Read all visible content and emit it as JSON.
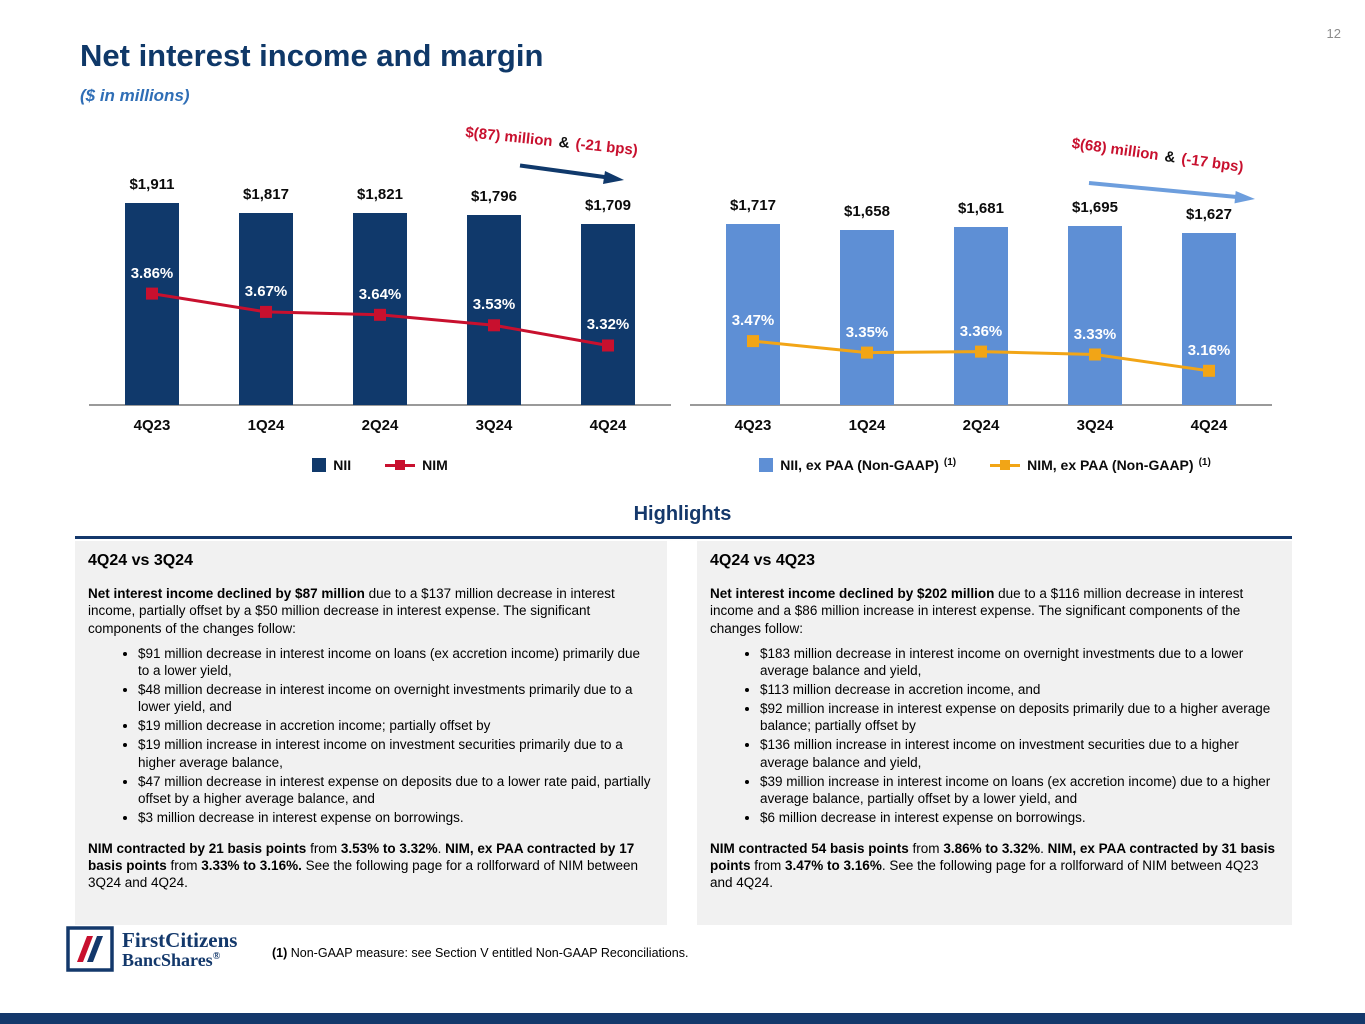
{
  "page": {
    "number": "12"
  },
  "header": {
    "title": "Net interest income and margin",
    "subtitle": "($ in millions)"
  },
  "colors": {
    "navy": "#14386B",
    "crimson": "#C8102E",
    "light_blue": "#5E8FD5",
    "amber": "#F2A516",
    "panel_gray": "#F1F1F1"
  },
  "chart_data": [
    {
      "type": "bar+line",
      "title": "",
      "categories": [
        "4Q23",
        "1Q24",
        "2Q24",
        "3Q24",
        "4Q24"
      ],
      "series": [
        {
          "name": "NII",
          "type": "bar",
          "color": "#10396B",
          "values": [
            1911,
            1817,
            1821,
            1796,
            1709
          ],
          "labels": [
            "$1,911",
            "$1,817",
            "$1,821",
            "$1,796",
            "$1,709"
          ]
        },
        {
          "name": "NIM",
          "type": "line",
          "color": "#C8102E",
          "values": [
            3.86,
            3.67,
            3.64,
            3.53,
            3.32
          ],
          "labels": [
            "3.86%",
            "3.67%",
            "3.64%",
            "3.53%",
            "3.32%"
          ]
        }
      ],
      "annotation": {
        "red1": "$(87) million",
        "amp": "&",
        "red2": "(-21 bps)",
        "arrow_color": "#10396B"
      },
      "legend": [
        {
          "label": "NII",
          "sup": "",
          "type": "bar",
          "color": "#10396B"
        },
        {
          "label": "NIM",
          "sup": "",
          "type": "line",
          "color": "#C8102E"
        }
      ],
      "grid": false,
      "legend_position": "bottom"
    },
    {
      "type": "bar+line",
      "title": "",
      "categories": [
        "4Q23",
        "1Q24",
        "2Q24",
        "3Q24",
        "4Q24"
      ],
      "series": [
        {
          "name": "NII, ex PAA (Non-GAAP)",
          "type": "bar",
          "color": "#5E8FD5",
          "values": [
            1717,
            1658,
            1681,
            1695,
            1627
          ],
          "labels": [
            "$1,717",
            "$1,658",
            "$1,681",
            "$1,695",
            "$1,627"
          ]
        },
        {
          "name": "NIM, ex PAA (Non-GAAP)",
          "type": "line",
          "color": "#F2A516",
          "values": [
            3.47,
            3.35,
            3.36,
            3.33,
            3.16
          ],
          "labels": [
            "3.47%",
            "3.35%",
            "3.36%",
            "3.33%",
            "3.16%"
          ]
        }
      ],
      "annotation": {
        "red1": "$(68) million",
        "amp": "&",
        "red2": "(-17 bps)",
        "arrow_color": "#6D9EDD"
      },
      "legend": [
        {
          "label": "NII, ex PAA (Non-GAAP)",
          "sup": "(1)",
          "type": "bar",
          "color": "#5E8FD5"
        },
        {
          "label": "NIM, ex PAA (Non-GAAP)",
          "sup": "(1)",
          "type": "line",
          "color": "#F2A516"
        }
      ],
      "grid": false,
      "legend_position": "bottom"
    }
  ],
  "highlights": {
    "title": "Highlights",
    "panels": [
      {
        "heading": "4Q24 vs 3Q24",
        "intro": [
          {
            "b": true,
            "t": "Net interest income declined by $87 million"
          },
          {
            "t": " due to a $137 million decrease in interest income, partially offset by a $50 million decrease in interest expense. The significant components of the changes follow:"
          }
        ],
        "bullets": [
          "$91 million decrease in interest income on loans (ex accretion income) primarily due to a lower yield,",
          "$48 million decrease in interest income on overnight investments primarily due to a lower yield, and",
          "$19 million decrease in accretion income; partially offset by",
          "$19 million increase in interest income on investment securities primarily due to a higher average balance,",
          "$47 million decrease in interest expense on deposits due to a lower rate paid, partially offset by a higher average balance, and",
          "$3 million decrease in interest expense on borrowings."
        ],
        "closing": [
          {
            "b": true,
            "t": "NIM contracted by 21 basis points"
          },
          {
            "t": " from "
          },
          {
            "b": true,
            "t": "3.53% to 3.32%"
          },
          {
            "t": ". "
          },
          {
            "b": true,
            "t": "NIM, ex PAA contracted by 17 basis points"
          },
          {
            "t": " from "
          },
          {
            "b": true,
            "t": "3.33% to 3.16%."
          },
          {
            "t": " See the following page for a rollforward of NIM between 3Q24 and 4Q24."
          }
        ]
      },
      {
        "heading": "4Q24 vs 4Q23",
        "intro": [
          {
            "b": true,
            "t": "Net interest income declined by $202 million"
          },
          {
            "t": " due to a $116 million decrease in interest income and a $86 million increase in interest expense. The significant components of the changes follow:"
          }
        ],
        "bullets": [
          "$183 million decrease in interest income on overnight investments due to a lower average balance and yield,",
          "$113 million decrease in accretion income, and",
          "$92 million increase in interest expense on deposits primarily due to a higher average balance; partially offset by",
          "$136 million increase in interest income on investment securities due to a higher average balance and yield,",
          "$39 million increase in interest income on loans (ex accretion income) due to a higher average balance, partially offset by a lower yield, and",
          "$6 million decrease in interest expense on borrowings."
        ],
        "closing": [
          {
            "b": true,
            "t": "NIM contracted 54 basis points"
          },
          {
            "t": " from "
          },
          {
            "b": true,
            "t": "3.86% to 3.32%"
          },
          {
            "t": ". "
          },
          {
            "b": true,
            "t": "NIM, ex PAA contracted by 31 basis points"
          },
          {
            "t": " from "
          },
          {
            "b": true,
            "t": "3.47% to 3.16%"
          },
          {
            "t": ". See the following page for a rollforward of NIM between 4Q23 and 4Q24."
          }
        ]
      }
    ]
  },
  "footer": {
    "logo": {
      "line1": "FirstCitizens",
      "line2": "BancShares",
      "reg": "®"
    },
    "footnote": [
      {
        "b": true,
        "t": "(1)"
      },
      {
        "t": " Non-GAAP measure: see Section V entitled Non-GAAP Reconciliations."
      }
    ]
  }
}
